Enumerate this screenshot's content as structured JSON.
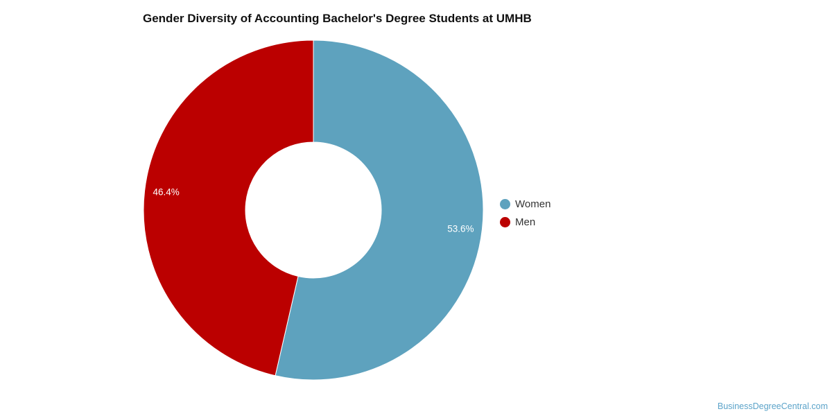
{
  "chart_data": {
    "type": "pie",
    "title": "Gender Diversity of Accounting Bachelor's Degree Students at UMHB",
    "donut": true,
    "slices": [
      {
        "name": "Women",
        "value": 53.6,
        "label": "53.6%",
        "color": "#5ea2be"
      },
      {
        "name": "Men",
        "value": 46.4,
        "label": "46.4%",
        "color": "#bb0000"
      }
    ],
    "legend_position": "right"
  },
  "credit": "BusinessDegreeCentral.com"
}
